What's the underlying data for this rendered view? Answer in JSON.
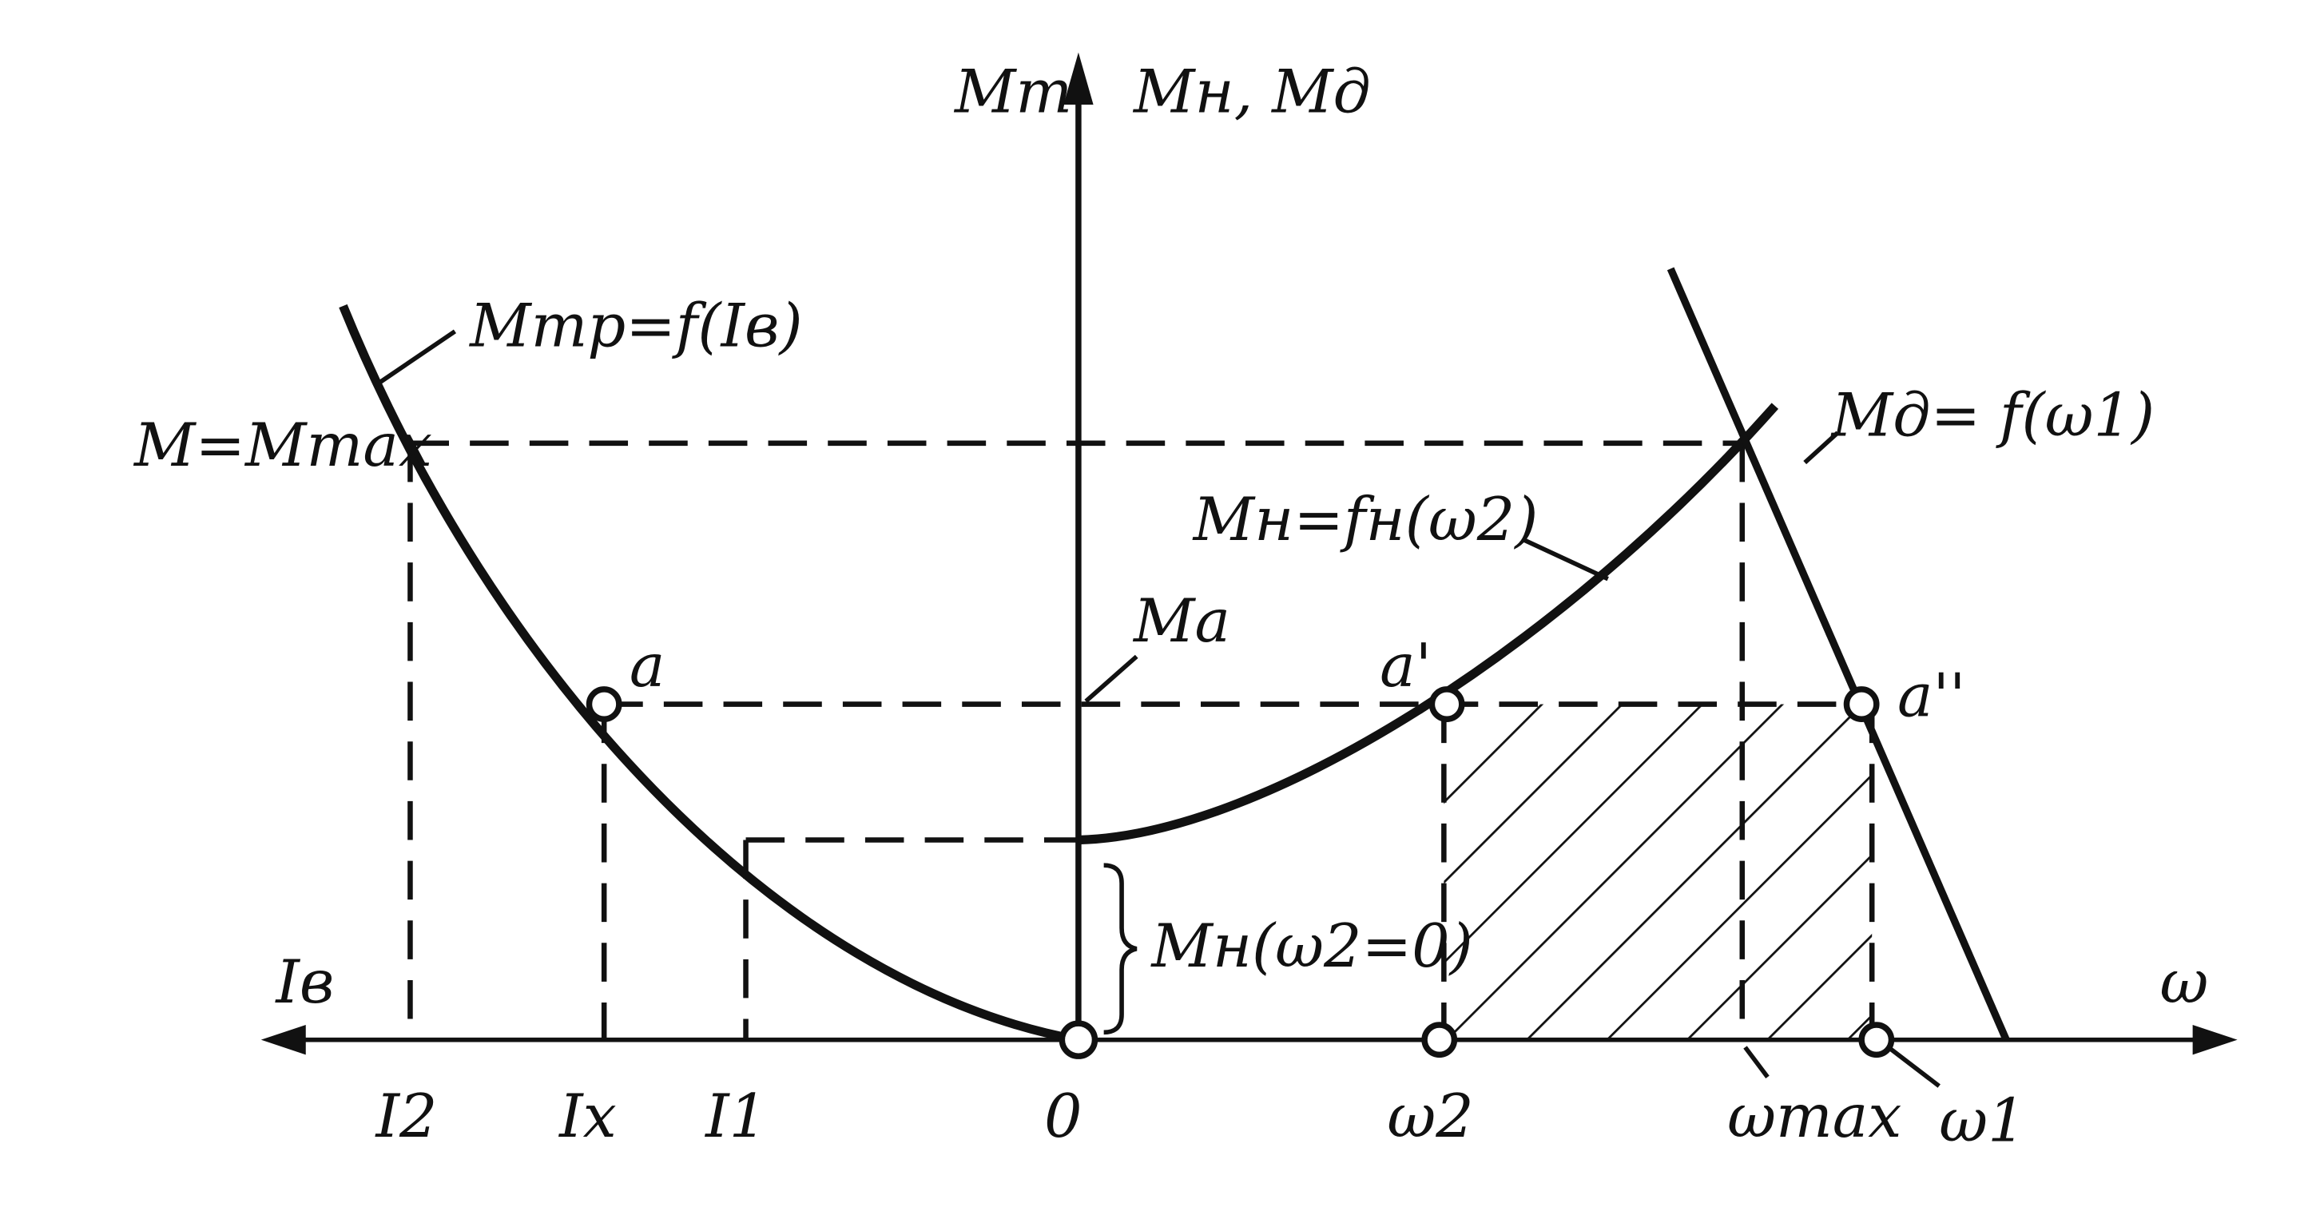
{
  "axes": {
    "y_left_label": "Mт",
    "y_right_label": "Mн, Mд",
    "x_left_label": "Iв",
    "x_right_label": "ω"
  },
  "curves": {
    "friction": "Mтр=f(Iв)",
    "engine": "Mд= f(ω1)",
    "load": "Mн=fн(ω2)",
    "load_at_zero": "Mн(ω2=0)",
    "moment_a": "Ma",
    "max_moment": "M=Mmax"
  },
  "points": {
    "a": "a",
    "a_prime": "a'",
    "a_double_prime": "a''"
  },
  "ticks": {
    "i2": "I2",
    "ix": "Ix",
    "i1": "I1",
    "origin": "0",
    "omega2": "ω2",
    "omega_max": "ωmax",
    "omega1": "ω1"
  }
}
